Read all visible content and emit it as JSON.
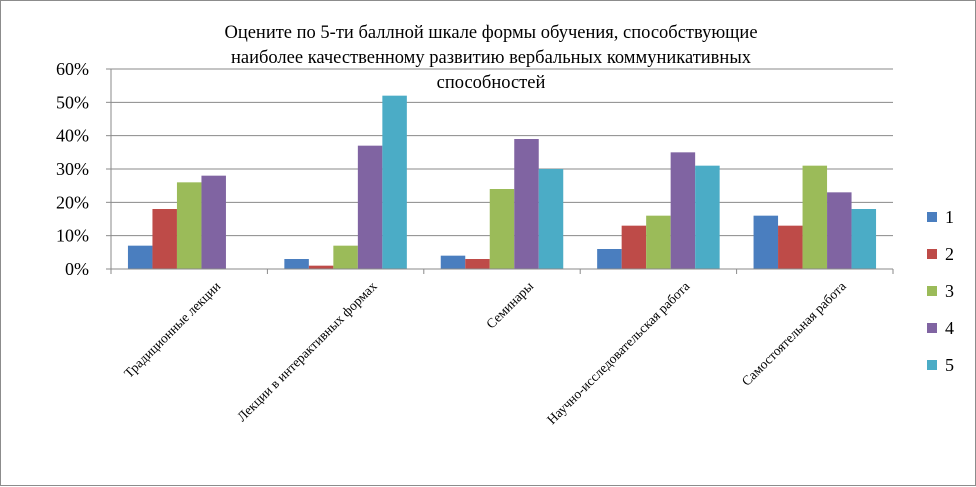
{
  "chart_data": {
    "type": "bar",
    "title": "Оцените по 5-ти баллной шкале формы обучения, способствующие наиболее качественному развитию вербальных коммуникативных способностей",
    "title_lines": [
      "Оцените по 5-ти баллной шкале формы обучения, способствующие",
      "наиболее качественному развитию вербальных коммуникативных",
      "способностей"
    ],
    "categories": [
      "Традиционные  лекции",
      "Лекции в  интерактивных  формах",
      "Семинары",
      "Научно-исследовательская работа",
      "Самостоятельная работа"
    ],
    "series": [
      {
        "name": "1",
        "color": "#4a7ebf",
        "values": [
          0.07,
          0.03,
          0.04,
          0.06,
          0.16
        ]
      },
      {
        "name": "2",
        "color": "#be4b48",
        "values": [
          0.18,
          0.01,
          0.03,
          0.13,
          0.13
        ]
      },
      {
        "name": "3",
        "color": "#9bbb59",
        "values": [
          0.26,
          0.07,
          0.24,
          0.16,
          0.31
        ]
      },
      {
        "name": "4",
        "color": "#8064a2",
        "values": [
          0.28,
          0.37,
          0.39,
          0.35,
          0.23
        ]
      },
      {
        "name": "5",
        "color": "#4bacc6",
        "values": [
          0.0,
          0.52,
          0.3,
          0.31,
          0.18
        ]
      }
    ],
    "yticks": [
      "0%",
      "10%",
      "20%",
      "30%",
      "40%",
      "50%",
      "60%"
    ],
    "ylim": [
      0,
      0.6
    ],
    "xlabel": "",
    "ylabel": "",
    "grid": true,
    "legend_position": "right"
  }
}
